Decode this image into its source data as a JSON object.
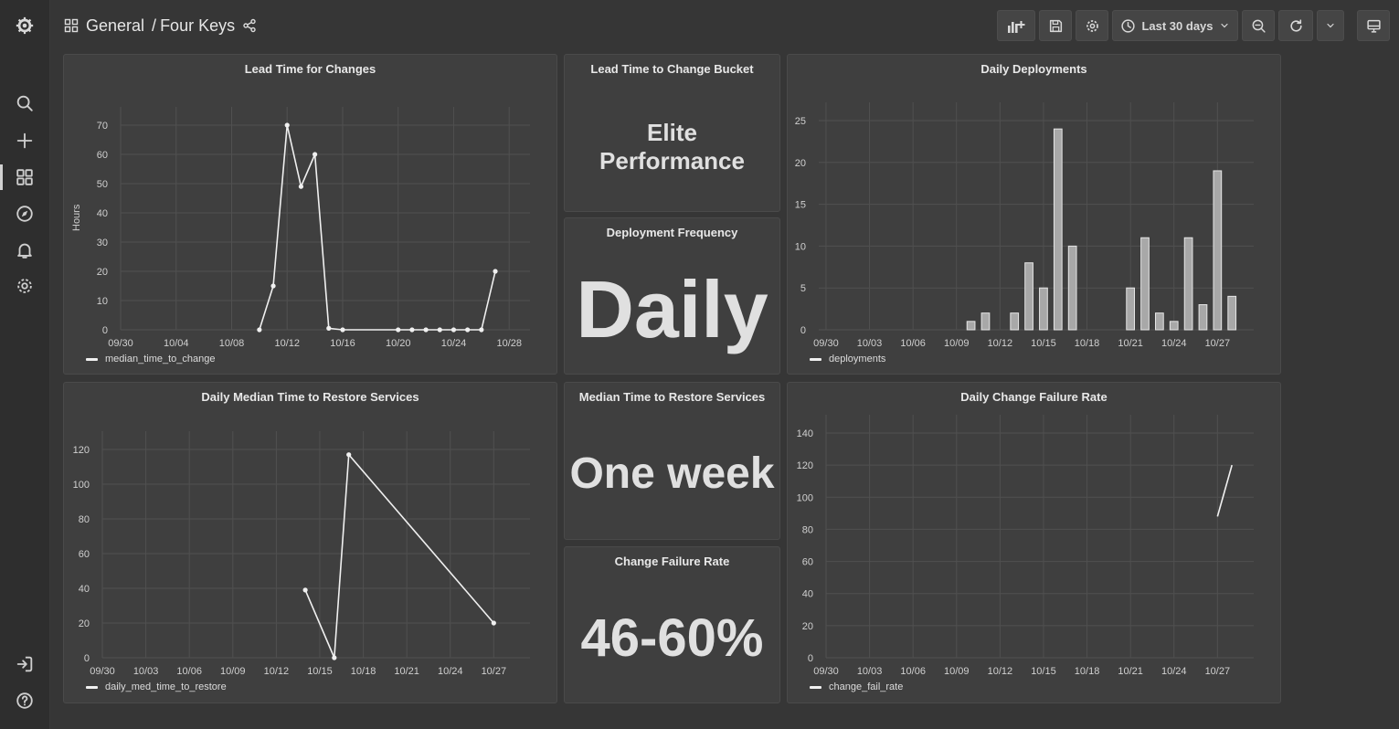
{
  "header": {
    "folder": "General",
    "separator": "/",
    "dashboard": "Four Keys",
    "time_range": "Last 30 days"
  },
  "colors": {
    "background": "#363636",
    "panel": "#3f3f3f",
    "series": "#f0f0f0",
    "grid": "#505050"
  },
  "panels": {
    "lead_time": {
      "title": "Lead Time for Changes",
      "ylabel": "Hours",
      "legend": "median_time_to_change"
    },
    "bucket": {
      "title": "Lead Time to Change Bucket",
      "value": "Elite Performance",
      "line1": "Elite",
      "line2": "Performance"
    },
    "daily_deploys": {
      "title": "Daily Deployments",
      "legend": "deployments"
    },
    "deploy_freq": {
      "title": "Deployment Frequency",
      "value": "Daily"
    },
    "restore": {
      "title": "Daily Median Time to Restore Services",
      "legend": "daily_med_time_to_restore"
    },
    "median_restore": {
      "title": "Median Time to Restore Services",
      "value": "One week"
    },
    "cfr": {
      "title": "Change Failure Rate",
      "value": "46-60%"
    },
    "daily_cfr": {
      "title": "Daily Change Failure Rate",
      "legend": "change_fail_rate"
    }
  },
  "chart_data": [
    {
      "id": "lead",
      "type": "line",
      "title": "Lead Time for Changes",
      "ylabel": "Hours",
      "x_ticks": [
        "09/30",
        "10/04",
        "10/08",
        "10/12",
        "10/16",
        "10/20",
        "10/24",
        "10/28"
      ],
      "x_tick_days": [
        0,
        4,
        8,
        12,
        16,
        20,
        24,
        28
      ],
      "y_ticks": [
        0,
        10,
        20,
        30,
        40,
        50,
        60,
        70
      ],
      "ylim": [
        0,
        70
      ],
      "xlim": [
        0,
        29.5
      ],
      "series": [
        {
          "name": "median_time_to_change",
          "x": [
            10,
            11,
            12,
            13,
            14,
            15,
            16,
            20,
            21,
            22,
            23,
            24,
            25,
            26,
            27
          ],
          "y": [
            0,
            15,
            70,
            49,
            60,
            0.5,
            0,
            0,
            0,
            0,
            0,
            0,
            0,
            0,
            20
          ]
        }
      ]
    },
    {
      "id": "deploys",
      "type": "bar",
      "title": "Daily Deployments",
      "x_ticks": [
        "09/30",
        "10/03",
        "10/06",
        "10/09",
        "10/12",
        "10/15",
        "10/18",
        "10/21",
        "10/24",
        "10/27"
      ],
      "x_tick_days": [
        0,
        3,
        6,
        9,
        12,
        15,
        18,
        21,
        24,
        27
      ],
      "y_ticks": [
        0,
        5,
        10,
        15,
        20,
        25
      ],
      "ylim": [
        0,
        25
      ],
      "xlim": [
        -0.5,
        29.5
      ],
      "series": [
        {
          "name": "deployments",
          "x": [
            10,
            11,
            13,
            14,
            15,
            16,
            17,
            21,
            22,
            23,
            24,
            25,
            26,
            27,
            28
          ],
          "y": [
            1,
            2,
            2,
            8,
            5,
            24,
            10,
            5,
            11,
            2,
            1,
            11,
            3,
            19,
            4
          ]
        }
      ]
    },
    {
      "id": "restore",
      "type": "line",
      "title": "Daily Median Time to Restore Services",
      "x_ticks": [
        "09/30",
        "10/03",
        "10/06",
        "10/09",
        "10/12",
        "10/15",
        "10/18",
        "10/21",
        "10/24",
        "10/27"
      ],
      "x_tick_days": [
        0,
        3,
        6,
        9,
        12,
        15,
        18,
        21,
        24,
        27
      ],
      "y_ticks": [
        0,
        20,
        40,
        60,
        80,
        100,
        120
      ],
      "ylim": [
        0,
        120
      ],
      "xlim": [
        0,
        29.5
      ],
      "series": [
        {
          "name": "daily_med_time_to_restore",
          "x": [
            14,
            16,
            17,
            27
          ],
          "y": [
            39,
            0,
            117,
            20
          ]
        }
      ]
    },
    {
      "id": "cfr",
      "type": "line",
      "title": "Daily Change Failure Rate",
      "x_ticks": [
        "09/30",
        "10/03",
        "10/06",
        "10/09",
        "10/12",
        "10/15",
        "10/18",
        "10/21",
        "10/24",
        "10/27"
      ],
      "x_tick_days": [
        0,
        3,
        6,
        9,
        12,
        15,
        18,
        21,
        24,
        27
      ],
      "y_ticks": [
        0,
        20,
        40,
        60,
        80,
        100,
        120,
        140
      ],
      "ylim": [
        0,
        140
      ],
      "xlim": [
        0,
        29.5
      ],
      "series": [
        {
          "name": "change_fail_rate",
          "x": [
            27,
            28
          ],
          "y": [
            88,
            120
          ],
          "show_points": false
        }
      ]
    }
  ]
}
